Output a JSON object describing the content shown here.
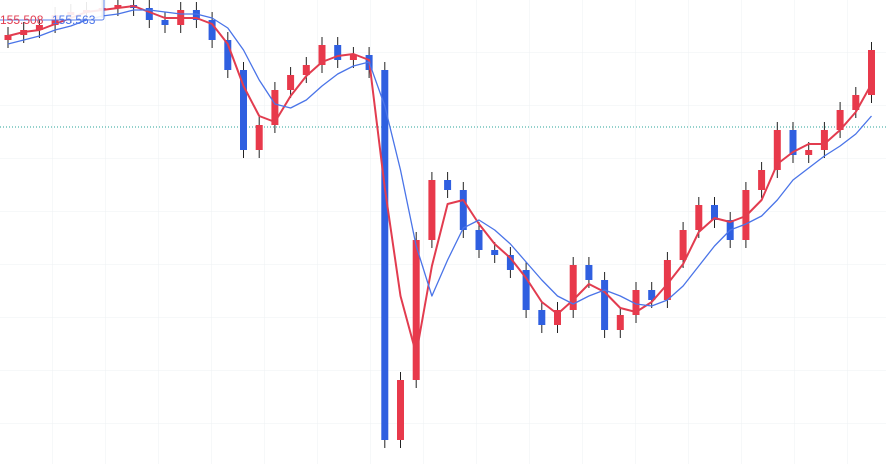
{
  "chart_data": {
    "type": "candlestick",
    "open": [
      155.4,
      155.425,
      155.45,
      155.475,
      155.525,
      155.54,
      155.55,
      155.56,
      155.575,
      155.56,
      155.5,
      155.475,
      155.55,
      155.5,
      155.4,
      155.25,
      154.85,
      154.975,
      155.15,
      155.225,
      155.275,
      155.375,
      155.3,
      155.325,
      155.25,
      153.4,
      153.7,
      154.4,
      154.7,
      154.65,
      154.45,
      154.35,
      154.325,
      154.25,
      154.05,
      153.975,
      154.05,
      154.275,
      154.2,
      153.95,
      154.025,
      154.15,
      154.1,
      154.3,
      154.45,
      154.575,
      154.5,
      154.4,
      154.65,
      154.75,
      154.95,
      154.825,
      154.85,
      154.95,
      155.05,
      155.125
    ],
    "high": [
      155.465,
      155.49,
      155.515,
      155.565,
      155.58,
      155.59,
      155.6,
      155.615,
      155.615,
      155.6,
      155.54,
      155.59,
      155.59,
      155.54,
      155.44,
      155.29,
      155.015,
      155.19,
      155.265,
      155.315,
      155.415,
      155.415,
      155.365,
      155.365,
      155.29,
      153.74,
      154.44,
      154.74,
      154.74,
      154.69,
      154.49,
      154.39,
      154.365,
      154.29,
      154.09,
      154.09,
      154.315,
      154.315,
      154.24,
      154.065,
      154.19,
      154.19,
      154.34,
      154.49,
      154.615,
      154.615,
      154.54,
      154.69,
      154.79,
      154.99,
      154.99,
      154.89,
      154.99,
      155.09,
      155.165,
      155.39
    ],
    "low": [
      155.36,
      155.385,
      155.41,
      155.435,
      155.485,
      155.5,
      155.51,
      155.52,
      155.52,
      155.46,
      155.435,
      155.435,
      155.46,
      155.36,
      155.21,
      154.81,
      154.81,
      154.935,
      155.11,
      155.185,
      155.235,
      155.26,
      155.26,
      155.21,
      153.36,
      153.36,
      153.66,
      154.36,
      154.61,
      154.41,
      154.31,
      154.285,
      154.21,
      154.01,
      153.935,
      153.935,
      154.01,
      154.16,
      153.91,
      153.91,
      153.985,
      154.06,
      154.06,
      154.26,
      154.41,
      154.46,
      154.36,
      154.36,
      154.61,
      154.71,
      154.785,
      154.785,
      154.81,
      154.91,
      155.01,
      155.085
    ],
    "close": [
      155.425,
      155.45,
      155.475,
      155.525,
      155.54,
      155.55,
      155.56,
      155.575,
      155.56,
      155.5,
      155.475,
      155.55,
      155.5,
      155.4,
      155.25,
      154.85,
      154.975,
      155.15,
      155.225,
      155.275,
      155.375,
      155.3,
      155.325,
      155.25,
      153.4,
      153.7,
      154.4,
      154.7,
      154.65,
      154.45,
      154.35,
      154.325,
      154.25,
      154.05,
      153.975,
      154.05,
      154.275,
      154.2,
      153.95,
      154.025,
      154.15,
      154.1,
      154.3,
      154.45,
      154.575,
      154.5,
      154.4,
      154.65,
      154.75,
      154.95,
      154.825,
      154.85,
      154.95,
      155.05,
      155.125,
      155.35
    ],
    "up_color": "#e8394b",
    "down_color": "#2f5fe0",
    "series": [
      {
        "label": "155.508",
        "color": "#e23c4f",
        "values": [
          155.42,
          155.44,
          155.45,
          155.48,
          155.51,
          155.54,
          155.55,
          155.56,
          155.57,
          155.54,
          155.51,
          155.51,
          155.51,
          155.48,
          155.38,
          155.17,
          155.02,
          154.99,
          155.12,
          155.22,
          155.29,
          155.32,
          155.33,
          155.3,
          154.66,
          154.12,
          153.83,
          154.27,
          154.58,
          154.6,
          154.48,
          154.38,
          154.31,
          154.21,
          154.09,
          154.03,
          154.1,
          154.18,
          154.14,
          154.06,
          154.04,
          154.09,
          154.18,
          154.28,
          154.44,
          154.51,
          154.49,
          154.52,
          154.6,
          154.78,
          154.84,
          154.88,
          154.88,
          154.95,
          155.04,
          155.18
        ]
      },
      {
        "label": "155.563",
        "color": "#4a74e8",
        "values": [
          155.38,
          155.4,
          155.42,
          155.45,
          155.47,
          155.5,
          155.52,
          155.53,
          155.55,
          155.55,
          155.54,
          155.53,
          155.53,
          155.51,
          155.46,
          155.35,
          155.2,
          155.08,
          155.06,
          155.1,
          155.17,
          155.23,
          155.27,
          155.29,
          155.07,
          154.75,
          154.37,
          154.12,
          154.3,
          154.46,
          154.5,
          154.45,
          154.38,
          154.29,
          154.2,
          154.12,
          154.08,
          154.12,
          154.15,
          154.12,
          154.08,
          154.07,
          154.1,
          154.17,
          154.27,
          154.37,
          154.45,
          154.48,
          154.52,
          154.6,
          154.7,
          154.76,
          154.82,
          154.87,
          154.93,
          155.02
        ]
      }
    ],
    "price_line": 154.965,
    "ylim": [
      153.28,
      155.6
    ]
  }
}
